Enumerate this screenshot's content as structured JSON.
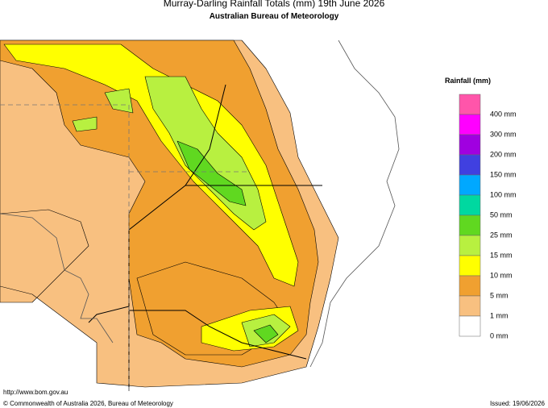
{
  "header": {
    "title": "Murray-Darling Rainfall Totals (mm)      19th June 2026",
    "subtitle": "Australian Bureau of Meteorology"
  },
  "legend": {
    "title": "Rainfall (mm)",
    "items": [
      {
        "label": "400 mm",
        "color": "#ff55aa"
      },
      {
        "label": "300 mm",
        "color": "#ff00ff"
      },
      {
        "label": "200 mm",
        "color": "#a000e0"
      },
      {
        "label": "150 mm",
        "color": "#4040e0"
      },
      {
        "label": "100 mm",
        "color": "#00a8ff"
      },
      {
        "label": "50 mm",
        "color": "#00d8a0"
      },
      {
        "label": "25 mm",
        "color": "#60d820"
      },
      {
        "label": "15 mm",
        "color": "#b8f040"
      },
      {
        "label": "10 mm",
        "color": "#ffff00"
      },
      {
        "label": "5 mm",
        "color": "#f0a030"
      },
      {
        "label": "1 mm",
        "color": "#f8c080"
      },
      {
        "label": "0 mm",
        "color": "#ffffff"
      }
    ]
  },
  "footer": {
    "url": "http://www.bom.gov.au",
    "copyright": "© Commonwealth of Australia 2026, Bureau of Meteorology",
    "issued": "Issued: 19/06/2026"
  }
}
